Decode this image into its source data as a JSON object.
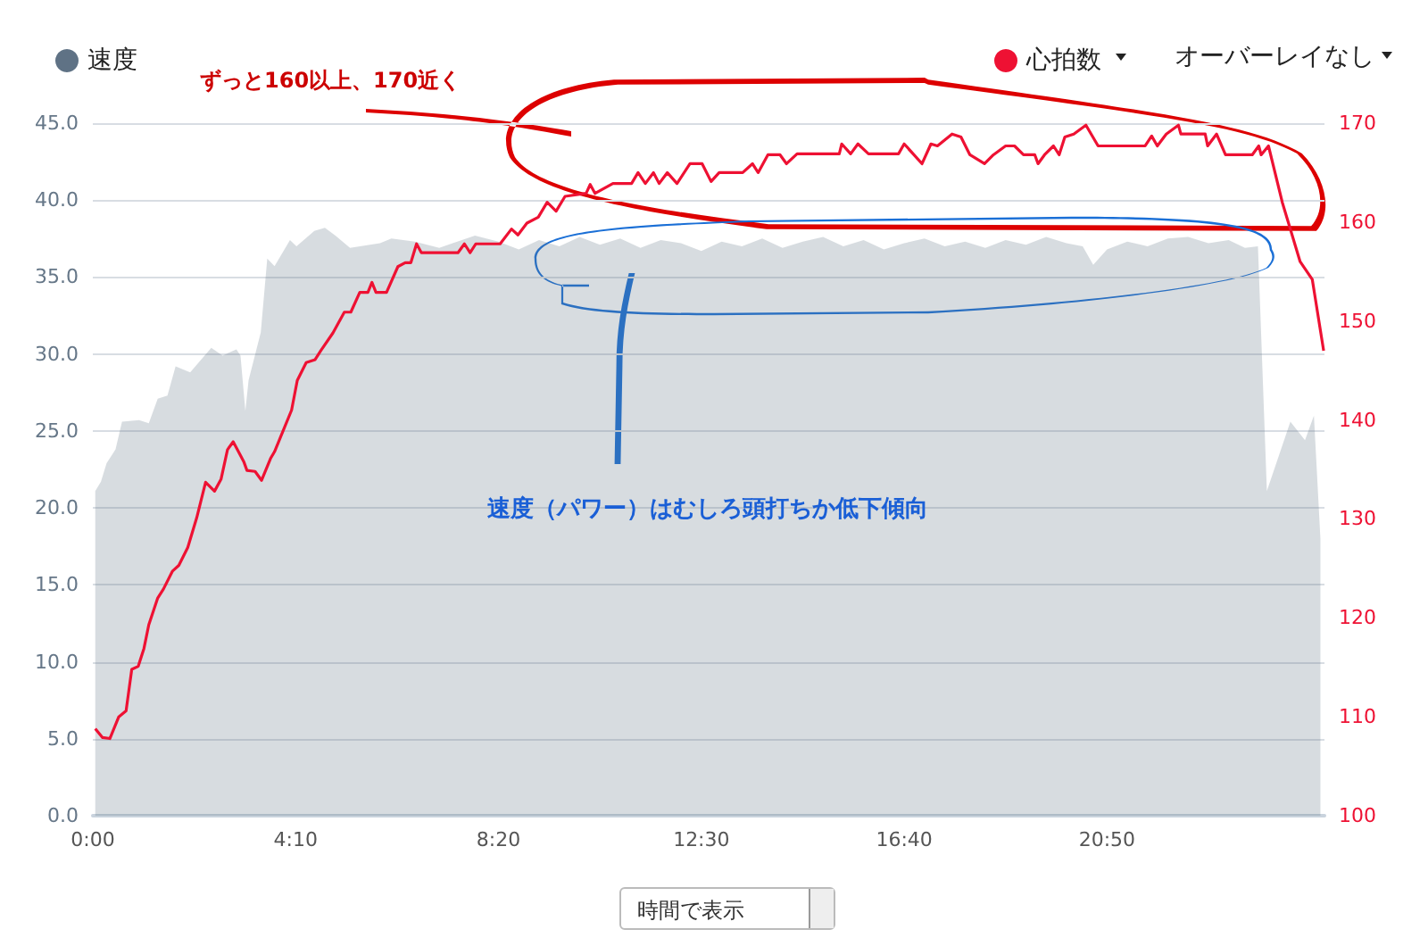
{
  "chart_data": {
    "type": "area",
    "xlim": [
      0,
      1518
    ],
    "xticks": [
      {
        "value": 0,
        "label": "0:00"
      },
      {
        "value": 250,
        "label": "4:10"
      },
      {
        "value": 500,
        "label": "8:20"
      },
      {
        "value": 750,
        "label": "12:30"
      },
      {
        "value": 1000,
        "label": "16:40"
      },
      {
        "value": 1250,
        "label": "20:50"
      }
    ],
    "ylim": [
      0,
      45
    ],
    "yticks": [
      {
        "value": 0,
        "label": "0.0"
      },
      {
        "value": 5,
        "label": "5.0"
      },
      {
        "value": 10,
        "label": "10.0"
      },
      {
        "value": 15,
        "label": "15.0"
      },
      {
        "value": 20,
        "label": "20.0"
      },
      {
        "value": 25,
        "label": "25.0"
      },
      {
        "value": 30,
        "label": "30.0"
      },
      {
        "value": 35,
        "label": "35.0"
      },
      {
        "value": 40,
        "label": "40.0"
      },
      {
        "value": 45,
        "label": "45.0"
      }
    ],
    "y2lim": [
      100,
      170
    ],
    "y2ticks": [
      100,
      110,
      120,
      130,
      140,
      150,
      160,
      170
    ],
    "grid": "y",
    "legend": "top",
    "marker": "none",
    "series": [
      {
        "name": "速度",
        "type": "area",
        "color": "#5f7285",
        "x": [
          3,
          10,
          17,
          28,
          36,
          57,
          69,
          80,
          92,
          102,
          120,
          146,
          160,
          177,
          182,
          188,
          192,
          207,
          215,
          224,
          243,
          251,
          273,
          286,
          299,
          317,
          354,
          368,
          397,
          427,
          471,
          500,
          525,
          550,
          575,
          600,
          625,
          650,
          675,
          700,
          725,
          750,
          775,
          800,
          825,
          850,
          875,
          900,
          925,
          950,
          975,
          1000,
          1025,
          1050,
          1075,
          1100,
          1125,
          1150,
          1175,
          1200,
          1220,
          1233,
          1250,
          1275,
          1300,
          1325,
          1350,
          1375,
          1400,
          1420,
          1436,
          1447,
          1476,
          1494,
          1505,
          1513
        ],
        "values": [
          21.1,
          21.7,
          22.9,
          23.8,
          25.6,
          25.7,
          25.5,
          27.1,
          27.3,
          29.2,
          28.8,
          30.4,
          29.9,
          30.3,
          29.9,
          26.3,
          28.3,
          31.4,
          36.2,
          35.7,
          37.4,
          37.0,
          38.0,
          38.2,
          37.7,
          36.9,
          37.2,
          37.5,
          37.3,
          36.9,
          37.7,
          37.3,
          36.8,
          37.4,
          37.0,
          37.6,
          37.1,
          37.5,
          36.9,
          37.4,
          37.2,
          36.7,
          37.3,
          37.0,
          37.5,
          36.9,
          37.3,
          37.6,
          37.0,
          37.4,
          36.8,
          37.2,
          37.5,
          37.0,
          37.3,
          36.9,
          37.4,
          37.1,
          37.6,
          37.2,
          37.0,
          35.8,
          36.8,
          37.3,
          37.0,
          37.5,
          37.6,
          37.2,
          37.4,
          36.9,
          37.0,
          21.1,
          25.6,
          24.4,
          26.0,
          18.0
        ]
      },
      {
        "name": "心拍数",
        "type": "line",
        "axis": "y2",
        "color": "#ee1133",
        "x": [
          3,
          12,
          21,
          32,
          41,
          48,
          56,
          63,
          69,
          80,
          87,
          98,
          106,
          117,
          128,
          139,
          150,
          158,
          166,
          173,
          186,
          190,
          200,
          208,
          219,
          224,
          234,
          245,
          252,
          263,
          274,
          281,
          296,
          310,
          318,
          329,
          339,
          344,
          349,
          362,
          376,
          385,
          392,
          399,
          405,
          450,
          458,
          465,
          472,
          502,
          516,
          524,
          535,
          549,
          560,
          571,
          582,
          608,
          613,
          619,
          641,
          664,
          672,
          681,
          691,
          698,
          708,
          720,
          736,
          751,
          762,
          772,
          801,
          813,
          820,
          832,
          847,
          855,
          868,
          920,
          923,
          934,
          943,
          956,
          993,
          1000,
          1011,
          1022,
          1033,
          1041,
          1059,
          1070,
          1081,
          1099,
          1110,
          1125,
          1136,
          1147,
          1161,
          1165,
          1173,
          1184,
          1191,
          1198,
          1209,
          1224,
          1239,
          1297,
          1305,
          1312,
          1323,
          1338,
          1341,
          1371,
          1374,
          1385,
          1396,
          1429,
          1437,
          1440,
          1449,
          1466,
          1488,
          1503,
          1517
        ],
        "values": [
          108.8,
          107.9,
          107.8,
          110.0,
          110.6,
          114.8,
          115.1,
          116.9,
          119.3,
          122.0,
          122.9,
          124.7,
          125.3,
          127.1,
          130.1,
          133.7,
          132.8,
          134.0,
          137.0,
          137.8,
          135.8,
          134.9,
          134.8,
          133.9,
          136.1,
          136.8,
          138.8,
          141.0,
          144.0,
          145.8,
          146.1,
          147.0,
          148.8,
          150.9,
          150.9,
          152.9,
          152.9,
          153.9,
          152.9,
          152.9,
          155.5,
          155.9,
          155.9,
          157.8,
          156.9,
          156.9,
          157.8,
          156.9,
          157.8,
          157.8,
          159.3,
          158.7,
          159.9,
          160.5,
          162.0,
          161.1,
          162.6,
          162.9,
          163.8,
          162.9,
          163.9,
          163.9,
          165.0,
          163.9,
          165.0,
          163.9,
          165.0,
          163.9,
          165.9,
          165.9,
          164.1,
          165.0,
          165.0,
          165.9,
          165.0,
          166.8,
          166.8,
          165.9,
          166.9,
          166.9,
          167.9,
          166.9,
          167.9,
          166.9,
          166.9,
          167.9,
          166.9,
          165.9,
          167.9,
          167.7,
          168.9,
          168.6,
          166.8,
          165.9,
          166.8,
          167.7,
          167.7,
          166.8,
          166.8,
          165.9,
          166.8,
          167.7,
          166.8,
          168.6,
          168.9,
          169.8,
          167.7,
          167.7,
          168.7,
          167.7,
          168.9,
          169.8,
          168.9,
          168.9,
          167.7,
          168.9,
          166.8,
          166.8,
          167.7,
          166.8,
          167.7,
          162.0,
          156.0,
          154.2,
          147.0
        ]
      }
    ],
    "annotations": [
      "ずっと160以上、170近く",
      "速度（パワー）はむしろ頭打ちか低下傾向",
      "オーバーレイなし",
      "時間で表示"
    ]
  }
}
